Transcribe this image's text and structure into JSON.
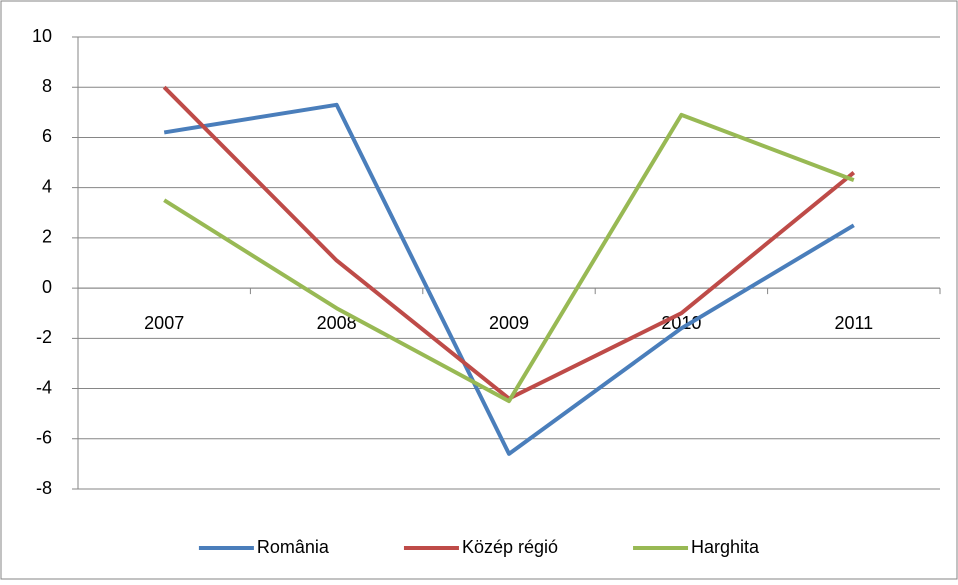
{
  "chart_data": {
    "type": "line",
    "categories": [
      "2007",
      "2008",
      "2009",
      "2010",
      "2011"
    ],
    "series": [
      {
        "name": "România",
        "color": "#4a7ebb",
        "values": [
          6.2,
          7.3,
          -6.6,
          -1.6,
          2.5
        ]
      },
      {
        "name": "Közép régió",
        "color": "#be4b48",
        "values": [
          8.0,
          1.1,
          -4.4,
          -1.0,
          4.6
        ]
      },
      {
        "name": "Harghita",
        "color": "#98b954",
        "values": [
          3.5,
          -0.8,
          -4.5,
          6.9,
          4.3
        ]
      }
    ],
    "ylim": [
      -8,
      10
    ],
    "yticks": [
      -8,
      -6,
      -4,
      -2,
      0,
      2,
      4,
      6,
      8,
      10
    ],
    "grid": true,
    "legend": "bottom"
  }
}
